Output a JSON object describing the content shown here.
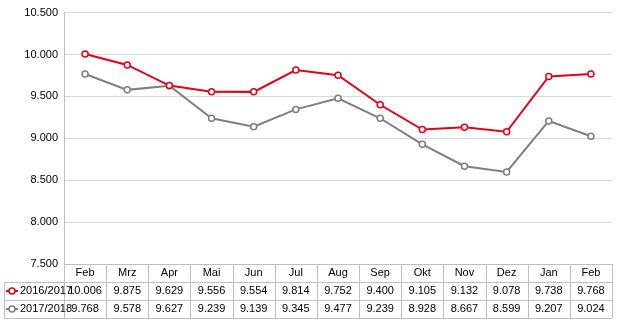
{
  "chart_data": {
    "type": "line",
    "categories": [
      "Feb",
      "Mrz",
      "Apr",
      "Mai",
      "Jun",
      "Jul",
      "Aug",
      "Sep",
      "Okt",
      "Nov",
      "Dez",
      "Jan",
      "Feb"
    ],
    "series": [
      {
        "name": "2016/2017",
        "color": "#e2001a",
        "marker": "circle",
        "values": [
          10006,
          9875,
          9629,
          9556,
          9554,
          9814,
          9752,
          9400,
          9105,
          9132,
          9078,
          9738,
          9768
        ],
        "value_labels": [
          "10.006",
          "9.875",
          "9.629",
          "9.556",
          "9.554",
          "9.814",
          "9.752",
          "9.400",
          "9.105",
          "9.132",
          "9.078",
          "9.738",
          "9.768"
        ]
      },
      {
        "name": "2017/2018",
        "color": "#7f7f7f",
        "marker": "circle",
        "values": [
          9768,
          9578,
          9627,
          9239,
          9139,
          9345,
          9477,
          9239,
          8928,
          8667,
          8599,
          9207,
          9024
        ],
        "value_labels": [
          "9.768",
          "9.578",
          "9.627",
          "9.239",
          "9.139",
          "9.345",
          "9.477",
          "9.239",
          "8.928",
          "8.667",
          "8.599",
          "9.207",
          "9.024"
        ]
      }
    ],
    "ylim": [
      7500,
      10500
    ],
    "yticks": [
      {
        "value": 7500,
        "label": "7.500"
      },
      {
        "value": 8000,
        "label": "8.000"
      },
      {
        "value": 8500,
        "label": "8.500"
      },
      {
        "value": 9000,
        "label": "9.000"
      },
      {
        "value": 9500,
        "label": "9.500"
      },
      {
        "value": 10000,
        "label": "10.000"
      },
      {
        "value": 10500,
        "label": "10.500"
      }
    ],
    "grid": true
  }
}
